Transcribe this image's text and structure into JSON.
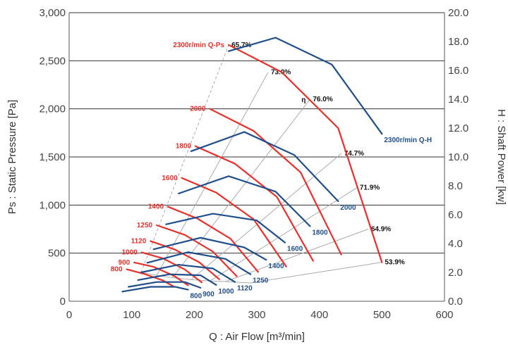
{
  "chart_data": {
    "type": "line",
    "title": "",
    "xlabel": "Q : Air Flow [m³/min]",
    "ylabel_left": "Ps : Static Pressure [Pa]",
    "ylabel_right": "H : Shaft Power [kw]",
    "xlim": [
      0,
      600
    ],
    "ylim_left": [
      0,
      3000
    ],
    "ylim_right": [
      0,
      20
    ],
    "x_ticks": [
      "0",
      "100",
      "200",
      "300",
      "400",
      "500",
      "600"
    ],
    "y_left_ticks": [
      "0",
      "500",
      "1,000",
      "1,500",
      "2,000",
      "2,500",
      "3,000"
    ],
    "y_right_ticks": [
      "0.0",
      "2.0",
      "4.0",
      "6.0",
      "8.0",
      "10.0",
      "12.0",
      "14.0",
      "16.0",
      "18.0",
      "20.0"
    ],
    "grid": "horizontal",
    "colors": {
      "pressure": "#e8302a",
      "power": "#1f4e8c",
      "efficiency": "#aaaaaa",
      "grid": "#333333"
    },
    "pressure_series": [
      {
        "name": "800",
        "label": "800",
        "points": [
          [
            92,
            332
          ],
          [
            120,
            284
          ],
          [
            150,
            216
          ],
          [
            168,
            150
          ]
        ]
      },
      {
        "name": "900",
        "label": "900",
        "points": [
          [
            104,
            403
          ],
          [
            135,
            358
          ],
          [
            168,
            263
          ],
          [
            190,
            166
          ]
        ]
      },
      {
        "name": "1000",
        "label": "1000",
        "points": [
          [
            116,
            508
          ],
          [
            150,
            445
          ],
          [
            185,
            330
          ],
          [
            212,
            196
          ]
        ]
      },
      {
        "name": "1120",
        "label": "1120",
        "points": [
          [
            130,
            625
          ],
          [
            168,
            540
          ],
          [
            208,
            405
          ],
          [
            240,
            228
          ]
        ]
      },
      {
        "name": "1250",
        "label": "1250",
        "points": [
          [
            140,
            790
          ],
          [
            185,
            690
          ],
          [
            230,
            515
          ],
          [
            268,
            260
          ]
        ]
      },
      {
        "name": "1400",
        "label": "1400",
        "points": [
          [
            158,
            983
          ],
          [
            205,
            860
          ],
          [
            258,
            650
          ],
          [
            302,
            305
          ]
        ]
      },
      {
        "name": "1600",
        "label": "1600",
        "points": [
          [
            180,
            1282
          ],
          [
            235,
            1130
          ],
          [
            295,
            852
          ],
          [
            347,
            360
          ]
        ]
      },
      {
        "name": "1800",
        "label": "1800",
        "points": [
          [
            202,
            1612
          ],
          [
            265,
            1430
          ],
          [
            332,
            1085
          ],
          [
            390,
            420
          ]
        ]
      },
      {
        "name": "2000",
        "label": "2000",
        "points": [
          [
            225,
            2000
          ],
          [
            295,
            1770
          ],
          [
            370,
            1340
          ],
          [
            435,
            485
          ]
        ]
      },
      {
        "name": "2300",
        "label": "2300r/min Q-Ps",
        "points": [
          [
            255,
            2665
          ],
          [
            340,
            2380
          ],
          [
            430,
            1800
          ],
          [
            500,
            405
          ]
        ]
      }
    ],
    "power_series": [
      {
        "name": "800",
        "label": "800",
        "points": [
          [
            85,
            0.67
          ],
          [
            130,
            1.0
          ],
          [
            170,
            1.0
          ],
          [
            190,
            0.8
          ]
        ]
      },
      {
        "name": "900",
        "label": "900",
        "points": [
          [
            95,
            1.0
          ],
          [
            140,
            1.33
          ],
          [
            185,
            1.33
          ],
          [
            210,
            0.93
          ]
        ]
      },
      {
        "name": "1000",
        "label": "1000",
        "points": [
          [
            110,
            1.47
          ],
          [
            160,
            1.87
          ],
          [
            210,
            1.8
          ],
          [
            235,
            1.13
          ]
        ]
      },
      {
        "name": "1120",
        "label": "1120",
        "points": [
          [
            115,
            2.0
          ],
          [
            175,
            2.53
          ],
          [
            230,
            2.27
          ],
          [
            265,
            1.33
          ]
        ]
      },
      {
        "name": "1250",
        "label": "1250",
        "points": [
          [
            125,
            2.67
          ],
          [
            190,
            3.4
          ],
          [
            250,
            2.93
          ],
          [
            290,
            1.87
          ]
        ]
      },
      {
        "name": "1400",
        "label": "1400",
        "points": [
          [
            135,
            3.6
          ],
          [
            210,
            4.4
          ],
          [
            280,
            3.73
          ],
          [
            315,
            2.87
          ]
        ]
      },
      {
        "name": "1600",
        "label": "1600",
        "points": [
          [
            155,
            5.33
          ],
          [
            230,
            6.07
          ],
          [
            300,
            5.6
          ],
          [
            345,
            4.07
          ]
        ]
      },
      {
        "name": "1800",
        "label": "1800",
        "points": [
          [
            175,
            7.47
          ],
          [
            255,
            8.67
          ],
          [
            330,
            7.6
          ],
          [
            385,
            5.2
          ]
        ]
      },
      {
        "name": "2000",
        "label": "2000",
        "points": [
          [
            195,
            10.4
          ],
          [
            280,
            11.73
          ],
          [
            360,
            10.13
          ],
          [
            430,
            6.93
          ]
        ]
      },
      {
        "name": "2300",
        "label": "2300r/min Q-H",
        "points": [
          [
            255,
            17.33
          ],
          [
            330,
            18.27
          ],
          [
            420,
            16.4
          ],
          [
            500,
            11.6
          ]
        ]
      }
    ],
    "efficiency_lines": [
      {
        "label": "65.7%",
        "points": [
          [
            115,
            300
          ],
          [
            255,
            2665
          ]
        ]
      },
      {
        "label": "73.0%",
        "points": [
          [
            140,
            270
          ],
          [
            318,
            2380
          ]
        ]
      },
      {
        "label": "76.0%",
        "points": [
          [
            165,
            245
          ],
          [
            385,
            2100
          ]
        ]
      },
      {
        "label": "74.7%",
        "points": [
          [
            195,
            225
          ],
          [
            435,
            1535
          ]
        ]
      },
      {
        "label": "71.9%",
        "points": [
          [
            225,
            210
          ],
          [
            460,
            1180
          ]
        ]
      },
      {
        "label": "64.9%",
        "points": [
          [
            250,
            205
          ],
          [
            478,
            750
          ]
        ]
      },
      {
        "label": "53.9%",
        "points": [
          [
            290,
            190
          ],
          [
            500,
            405
          ]
        ]
      }
    ],
    "eta_label": "η"
  }
}
